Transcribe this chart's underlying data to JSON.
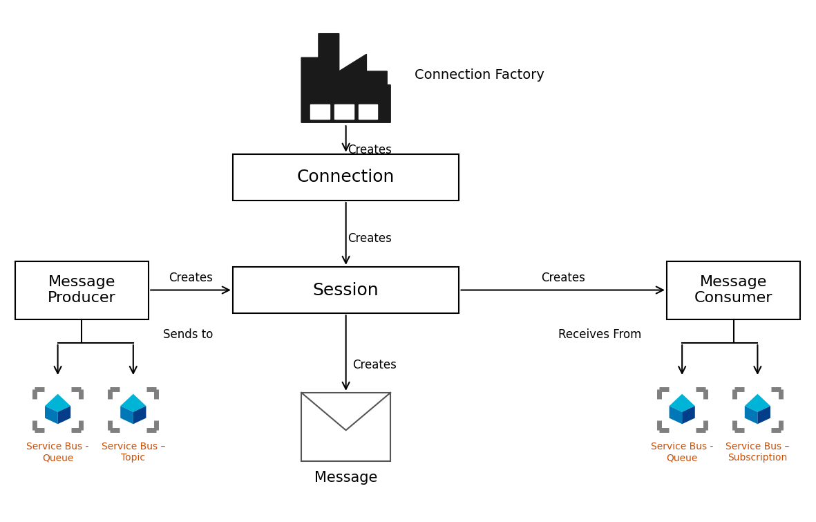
{
  "bg_color": "#ffffff",
  "box_color": "#ffffff",
  "box_edge_color": "#000000",
  "arrow_color": "#000000",
  "label_color": "#000000",
  "orange_color": "#c8500a",
  "gray_color": "#7f7f7f",
  "factory_color": "#1a1a1a",
  "creates_label": "Creates",
  "sends_to_label": "Sends to",
  "receives_from_label": "Receives From",
  "message_label": "Message",
  "connection_factory_label": "Connection Factory",
  "service_bus_labels_left": [
    "Service Bus -\nQueue",
    "Service Bus –\nTopic"
  ],
  "service_bus_labels_right": [
    "Service Bus -\nQueue",
    "Service Bus –\nSubscription"
  ],
  "conn_label": "Connection",
  "sess_label": "Session",
  "prod_label": "Message\nProducer",
  "cons_label": "Message\nConsumer"
}
